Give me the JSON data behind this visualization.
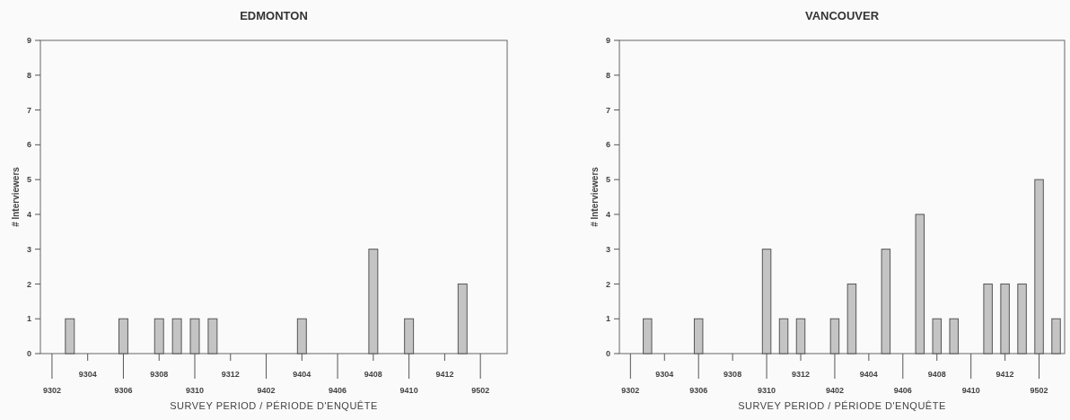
{
  "chart_data": [
    {
      "type": "bar",
      "title": "EDMONTON",
      "xlabel": "SURVEY PERIOD / PÉRIODE D'ENQUÊTE",
      "ylabel": "# Interviewers",
      "categories": [
        "9302",
        null,
        "9304",
        null,
        "9306",
        null,
        "9308",
        null,
        "9310",
        null,
        "9312",
        null,
        "9402",
        null,
        "9404",
        null,
        "9406",
        null,
        "9408",
        null,
        "9410",
        null,
        "9412",
        null,
        "9502",
        null
      ],
      "values": [
        0,
        1,
        0,
        0,
        1,
        0,
        1,
        1,
        1,
        1,
        0,
        0,
        0,
        0,
        1,
        0,
        0,
        0,
        3,
        0,
        1,
        0,
        0,
        2,
        0,
        0
      ],
      "color": "#c4c4c4",
      "ylim": [
        0,
        9
      ],
      "yticks": [
        0,
        1,
        2,
        3,
        4,
        5,
        6,
        7,
        8,
        9
      ]
    },
    {
      "type": "bar",
      "title": "VANCOUVER",
      "xlabel": "SURVEY PERIOD / PÉRIODE D'ENQUÊTE",
      "ylabel": "# Interviewers",
      "categories": [
        "9302",
        null,
        "9304",
        null,
        "9306",
        null,
        "9308",
        null,
        "9310",
        null,
        "9312",
        null,
        "9402",
        null,
        "9404",
        null,
        "9406",
        null,
        "9408",
        null,
        "9410",
        null,
        "9412",
        null,
        "9502",
        null
      ],
      "values": [
        0,
        1,
        0,
        0,
        1,
        0,
        0,
        0,
        3,
        1,
        1,
        0,
        1,
        2,
        0,
        3,
        0,
        4,
        1,
        1,
        0,
        2,
        2,
        2,
        5,
        1
      ],
      "color": "#c4c4c4",
      "ylim": [
        0,
        9
      ],
      "yticks": [
        0,
        1,
        2,
        3,
        4,
        5,
        6,
        7,
        8,
        9
      ]
    }
  ]
}
